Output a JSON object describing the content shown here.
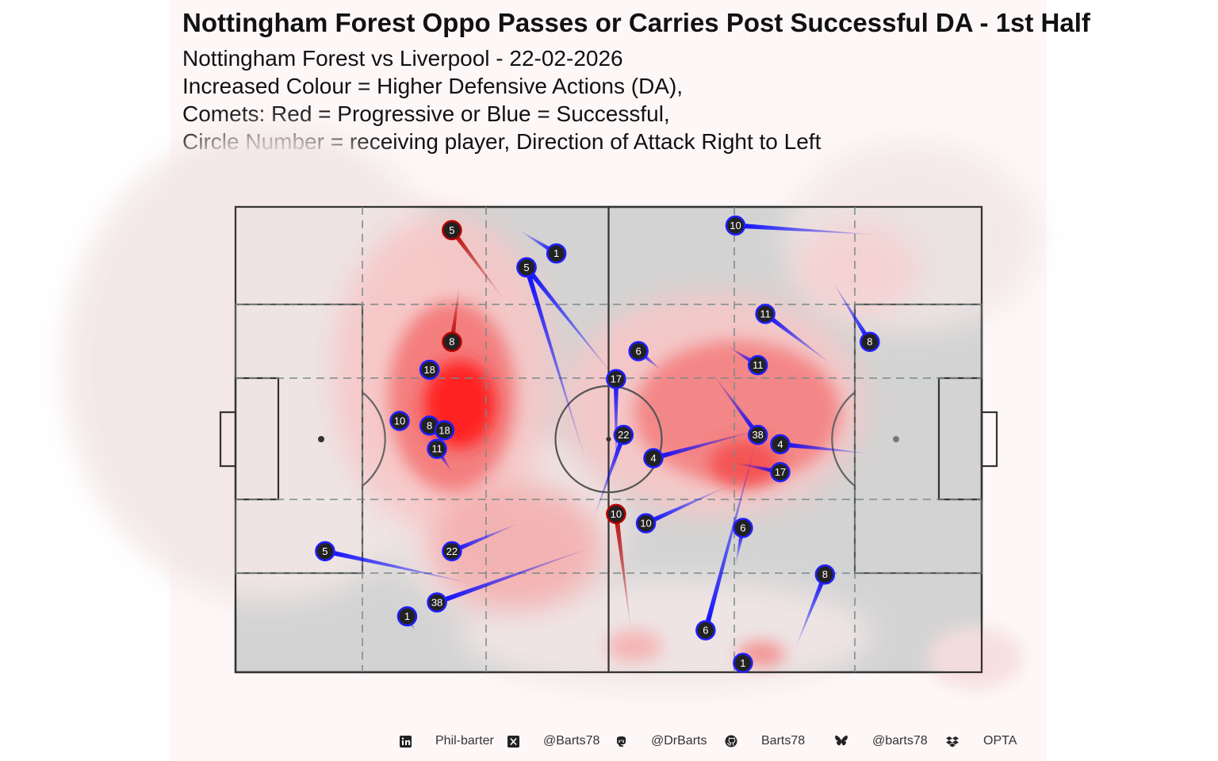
{
  "title": "Nottingham Forest Oppo Passes or Carries Post Successful DA - 1st Half",
  "subtitle_lines": [
    "Nottingham Forest vs Liverpool - 22-02-2026",
    "Increased Colour = Higher Defensive Actions (DA),",
    "Comets: Red = Progressive or Blue = Successful,",
    "Circle Number = receiving player, Direction of Attack Right to Left"
  ],
  "colors": {
    "progressive": "#b20000",
    "successful": "#0000ff",
    "pitch": "#d3d3d3",
    "density_high": "#ff1a1a",
    "background": "#fdf7f7"
  },
  "chart_data": {
    "type": "scatter",
    "description_type": "pitch event comets with defensive-action density",
    "xlim": [
      0,
      100
    ],
    "ylim": [
      0,
      100
    ],
    "events": [
      {
        "player": "5",
        "kind": "progressive",
        "start": [
          36,
          20
        ],
        "end": [
          29,
          5
        ]
      },
      {
        "player": "8",
        "kind": "progressive",
        "start": [
          30,
          17
        ],
        "end": [
          29,
          29
        ]
      },
      {
        "player": "10",
        "kind": "progressive",
        "start": [
          53,
          91
        ],
        "end": [
          51,
          66
        ]
      },
      {
        "player": "1",
        "kind": "successful",
        "start": [
          38,
          5
        ],
        "end": [
          43,
          10
        ]
      },
      {
        "player": "11",
        "kind": "successful",
        "start": [
          51,
          37
        ],
        "end": [
          39,
          13
        ]
      },
      {
        "player": "5",
        "kind": "successful",
        "start": [
          47,
          55
        ],
        "end": [
          39,
          13
        ]
      },
      {
        "player": "18",
        "kind": "successful",
        "start": [
          27,
          34
        ],
        "end": [
          26,
          35
        ]
      },
      {
        "player": "10",
        "kind": "successful",
        "start": [
          23,
          46
        ],
        "end": [
          22,
          46
        ]
      },
      {
        "player": "8",
        "kind": "successful",
        "start": [
          26,
          47
        ],
        "end": [
          26,
          47
        ]
      },
      {
        "player": "18",
        "kind": "successful",
        "start": [
          29,
          48
        ],
        "end": [
          28,
          48
        ]
      },
      {
        "player": "11",
        "kind": "successful",
        "start": [
          29,
          57
        ],
        "end": [
          27,
          52
        ]
      },
      {
        "player": "22",
        "kind": "successful",
        "start": [
          38,
          68
        ],
        "end": [
          29,
          74
        ]
      },
      {
        "player": "5",
        "kind": "successful",
        "start": [
          32,
          81
        ],
        "end": [
          12,
          74
        ]
      },
      {
        "player": "38",
        "kind": "successful",
        "start": [
          48,
          73
        ],
        "end": [
          27,
          85
        ]
      },
      {
        "player": "1",
        "kind": "successful",
        "start": [
          24,
          91
        ],
        "end": [
          23,
          88
        ]
      },
      {
        "player": "10",
        "kind": "successful",
        "start": [
          86,
          6
        ],
        "end": [
          67,
          4
        ]
      },
      {
        "player": "8",
        "kind": "successful",
        "start": [
          80,
          16
        ],
        "end": [
          85,
          29
        ]
      },
      {
        "player": "11",
        "kind": "successful",
        "start": [
          80,
          34
        ],
        "end": [
          71,
          23
        ]
      },
      {
        "player": "11",
        "kind": "successful",
        "start": [
          66,
          30
        ],
        "end": [
          70,
          34
        ]
      },
      {
        "player": "6",
        "kind": "successful",
        "start": [
          57,
          35
        ],
        "end": [
          54,
          31
        ]
      },
      {
        "player": "17",
        "kind": "successful",
        "start": [
          51,
          57
        ],
        "end": [
          51,
          37
        ]
      },
      {
        "player": "22",
        "kind": "successful",
        "start": [
          48,
          67
        ],
        "end": [
          52,
          49
        ]
      },
      {
        "player": "4",
        "kind": "successful",
        "start": [
          70,
          48
        ],
        "end": [
          56,
          54
        ]
      },
      {
        "player": "38",
        "kind": "successful",
        "start": [
          64,
          36
        ],
        "end": [
          70,
          49
        ]
      },
      {
        "player": "4",
        "kind": "successful",
        "start": [
          85,
          53
        ],
        "end": [
          73,
          51
        ]
      },
      {
        "player": "17",
        "kind": "successful",
        "start": [
          67,
          55
        ],
        "end": [
          73,
          57
        ]
      },
      {
        "player": "10",
        "kind": "successful",
        "start": [
          66,
          60
        ],
        "end": [
          55,
          68
        ]
      },
      {
        "player": "6",
        "kind": "successful",
        "start": [
          67,
          77
        ],
        "end": [
          68,
          69
        ]
      },
      {
        "player": "6",
        "kind": "successful",
        "start": [
          70,
          49
        ],
        "end": [
          63,
          91
        ]
      },
      {
        "player": "8",
        "kind": "successful",
        "start": [
          75,
          95
        ],
        "end": [
          79,
          79
        ]
      },
      {
        "player": "1",
        "kind": "successful",
        "start": [
          68,
          97
        ],
        "end": [
          68,
          98
        ]
      }
    ]
  },
  "footer": {
    "linkedin": "Phil-barter",
    "x": "@Barts78",
    "mastodon": "@DrBarts",
    "github": "Barts78",
    "bluesky": "@barts78",
    "source": "OPTA",
    "icons": [
      "linkedin-icon",
      "x-icon",
      "mastodon-icon",
      "github-icon",
      "bluesky-icon",
      "dropbox-icon"
    ]
  }
}
